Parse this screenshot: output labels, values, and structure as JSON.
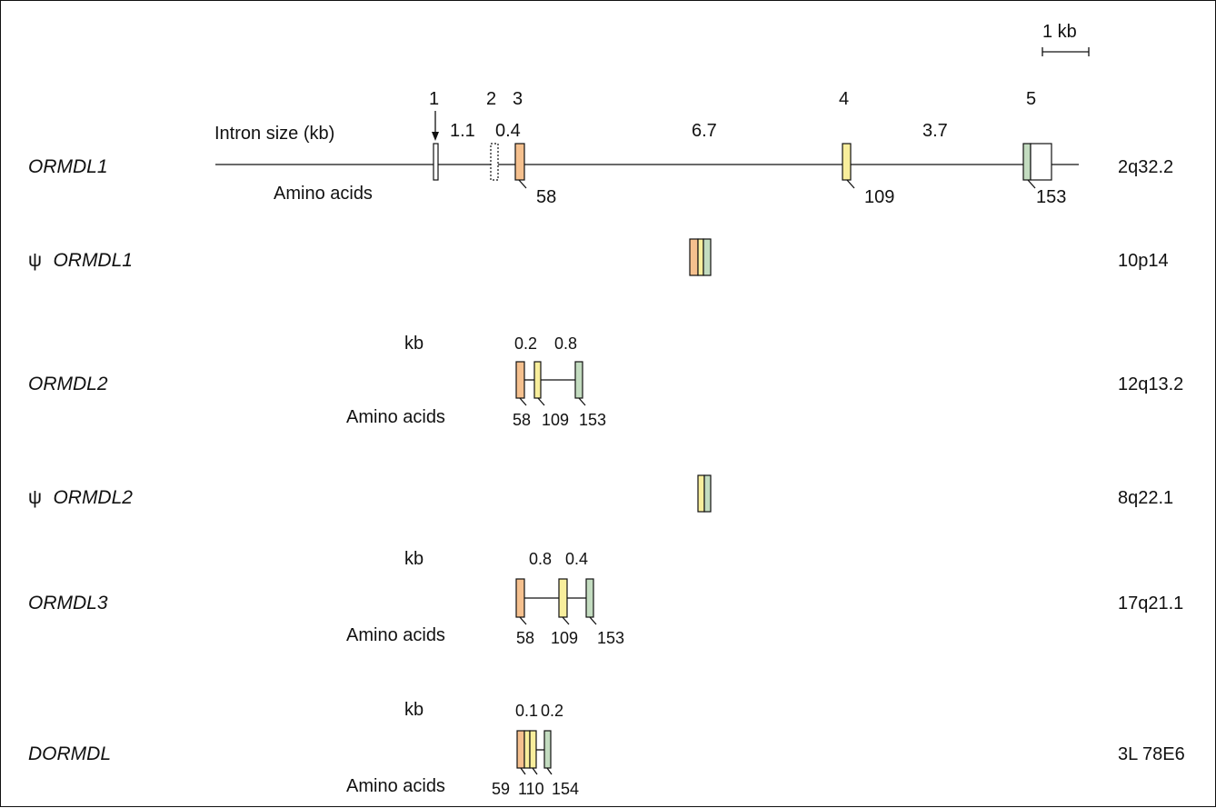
{
  "scale_bar": {
    "label": "1 kb"
  },
  "genes": [
    {
      "symbol": "",
      "name": "ORMDL1",
      "locus": "2q32.2",
      "exon_numbers": [
        "1",
        "2",
        "3",
        "4",
        "5"
      ],
      "intron_label": "Intron size (kb)",
      "intron_sizes": [
        "1.1",
        "0.4",
        "6.7",
        "3.7"
      ],
      "aa_label": "Amino acids",
      "aa_positions": [
        "58",
        "109",
        "153"
      ]
    },
    {
      "symbol": "ψ",
      "name": "ORMDL1",
      "locus": "10p14"
    },
    {
      "symbol": "",
      "name": "ORMDL2",
      "locus": "12q13.2",
      "intron_label": "kb",
      "intron_sizes": [
        "0.2",
        "0.8"
      ],
      "aa_label": "Amino acids",
      "aa_positions": [
        "58",
        "109",
        "153"
      ]
    },
    {
      "symbol": "ψ",
      "name": "ORMDL2",
      "locus": "8q22.1"
    },
    {
      "symbol": "",
      "name": "ORMDL3",
      "locus": "17q21.1",
      "intron_label": "kb",
      "intron_sizes": [
        "0.8",
        "0.4"
      ],
      "aa_label": "Amino acids",
      "aa_positions": [
        "58",
        "109",
        "153"
      ]
    },
    {
      "symbol": "",
      "name": "DORMDL",
      "locus": "3L 78E6",
      "intron_label": "kb",
      "intron_sizes": [
        "0.1",
        "0.2"
      ],
      "aa_label": "Amino acids",
      "aa_positions": [
        "59",
        "110",
        "154"
      ]
    }
  ],
  "colors": {
    "exon_orange": "#f5c08e",
    "exon_yellow": "#f8ee9c",
    "exon_green": "#c3dcc0",
    "line": "#111111"
  }
}
